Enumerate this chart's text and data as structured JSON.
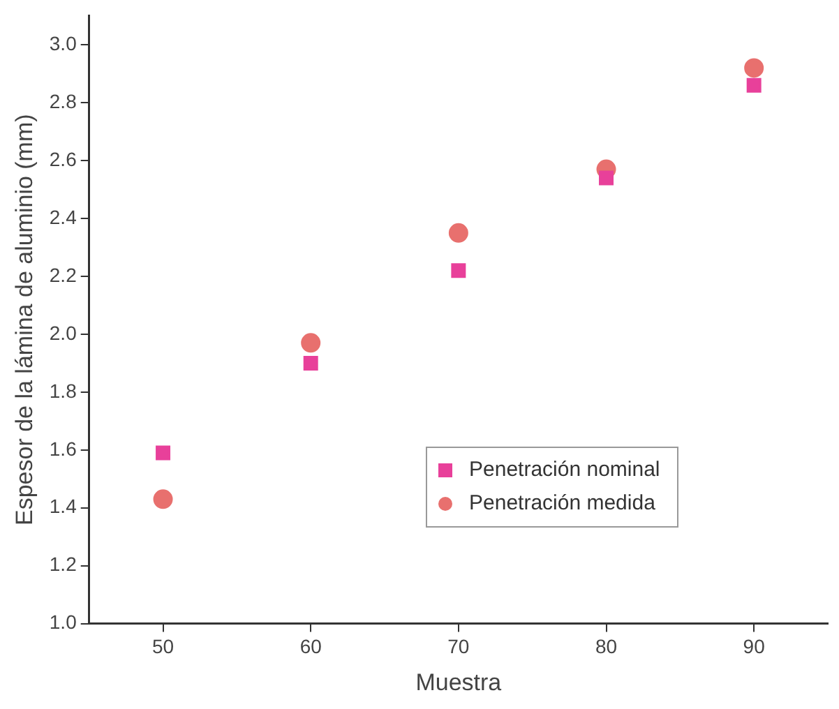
{
  "chart_data": {
    "type": "scatter",
    "xlabel": "Muestra",
    "ylabel": "Espesor de la lámina de aluminio (mm)",
    "x": [
      50,
      60,
      70,
      80,
      90
    ],
    "series": [
      {
        "name": "Penetración nominal",
        "color": "#e8409a",
        "marker": "square",
        "values": [
          1.59,
          1.9,
          2.22,
          2.54,
          2.86
        ]
      },
      {
        "name": "Penetración medida",
        "color": "#e8706e",
        "marker": "circle",
        "values": [
          1.43,
          1.97,
          2.35,
          2.57,
          2.92
        ]
      }
    ],
    "xlim": [
      45,
      95
    ],
    "xticks": [
      50,
      60,
      70,
      80,
      90
    ],
    "ylim": [
      1.0,
      3.1
    ],
    "yticks": [
      {
        "value": 1.0,
        "label": "1.0"
      },
      {
        "value": 1.2,
        "label": "1.2"
      },
      {
        "value": 1.4,
        "label": "1.4"
      },
      {
        "value": 1.6,
        "label": "1.6"
      },
      {
        "value": 1.8,
        "label": "1.8"
      },
      {
        "value": 2.0,
        "label": "2.0"
      },
      {
        "value": 2.2,
        "label": "2.2"
      },
      {
        "value": 2.4,
        "label": "2.4"
      },
      {
        "value": 2.6,
        "label": "2.6"
      },
      {
        "value": 2.8,
        "label": "2.8"
      },
      {
        "value": 3.0,
        "label": "3.0"
      }
    ],
    "grid": false,
    "legend": "bottom right"
  }
}
